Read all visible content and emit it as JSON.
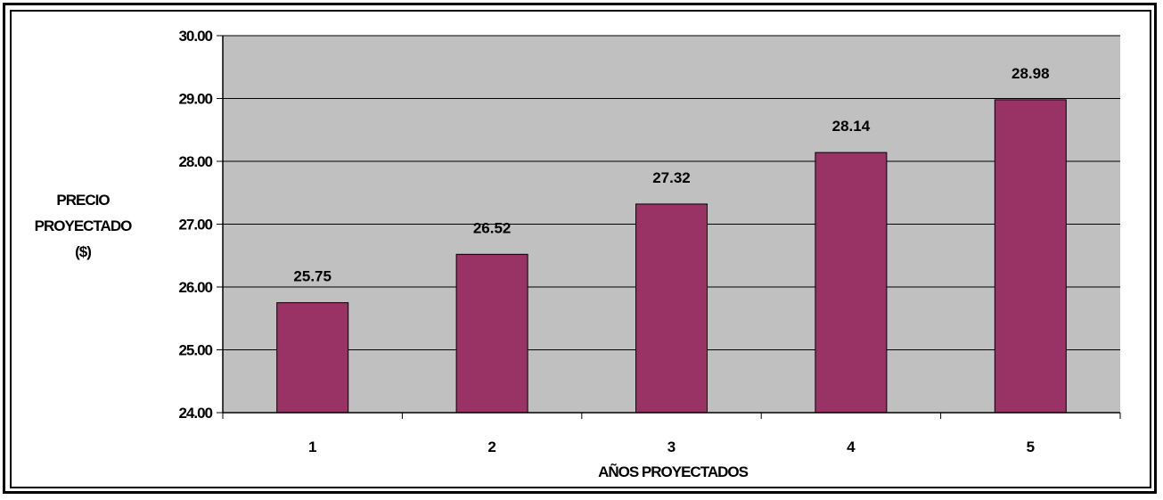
{
  "chart_data": {
    "type": "bar",
    "categories": [
      "1",
      "2",
      "3",
      "4",
      "5"
    ],
    "values": [
      25.75,
      26.52,
      27.32,
      28.14,
      28.98
    ],
    "data_labels": [
      "25.75",
      "26.52",
      "27.32",
      "28.14",
      "28.98"
    ],
    "xlabel": "AÑOS PROYECTADOS",
    "ylabel_lines": [
      "PRECIO",
      "PROYECTADO",
      "($)"
    ],
    "ylim": [
      24,
      30
    ],
    "yticks": [
      "24.00",
      "25.00",
      "26.00",
      "27.00",
      "28.00",
      "29.00",
      "30.00"
    ],
    "grid": true,
    "legend": "none",
    "colors": {
      "bar": "#993366",
      "plot_background": "#c0c0c0",
      "gridline": "#000000"
    }
  }
}
